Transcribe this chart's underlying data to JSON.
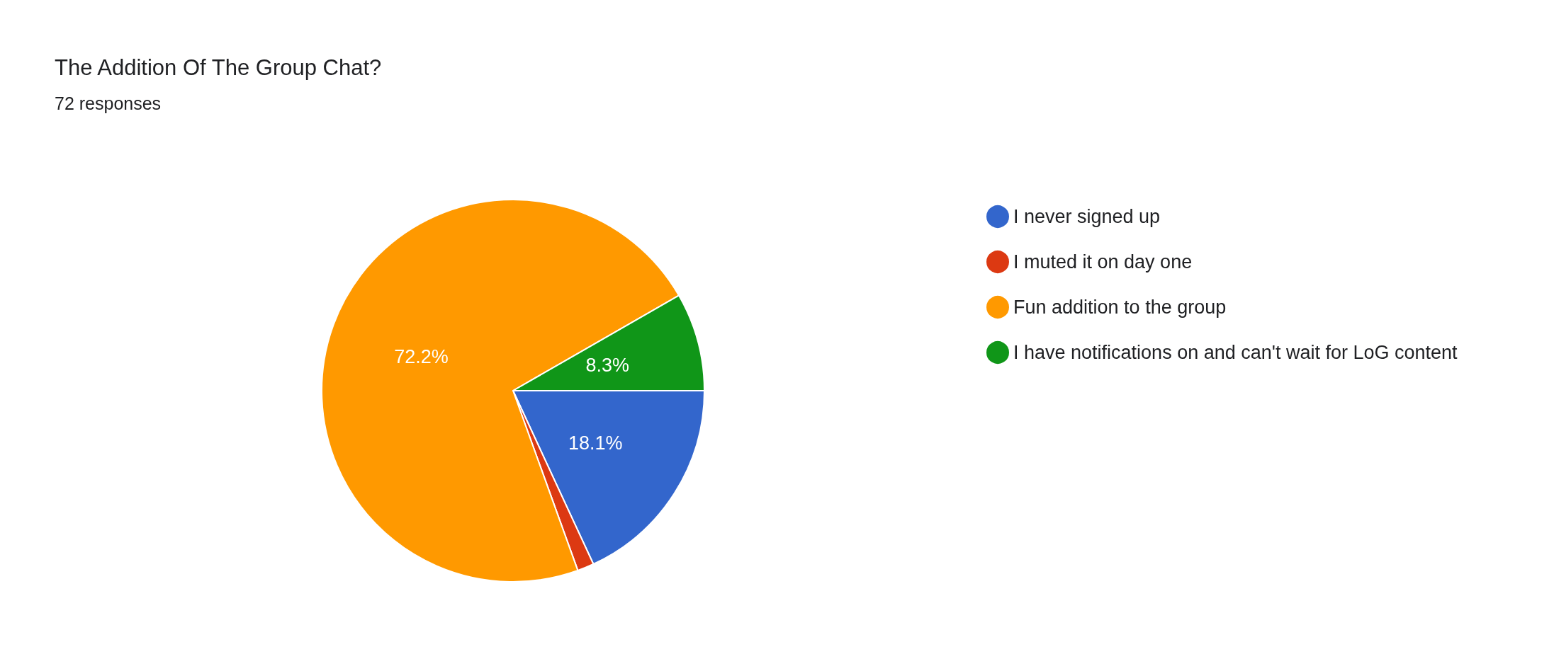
{
  "chart_data": {
    "type": "pie",
    "title": "The Addition Of The Group Chat?",
    "subtitle": "72 responses",
    "categories": [
      "I never signed up",
      "I muted it on day one",
      "Fun addition to the group",
      "I have notifications on and can't wait for LoG content"
    ],
    "values": [
      18.1,
      1.4,
      72.2,
      8.3
    ],
    "colors": [
      "#3366cc",
      "#dc3912",
      "#ff9900",
      "#109618"
    ],
    "value_labels": [
      "18.1%",
      null,
      "72.2%",
      "8.3%"
    ],
    "legend": "right"
  }
}
